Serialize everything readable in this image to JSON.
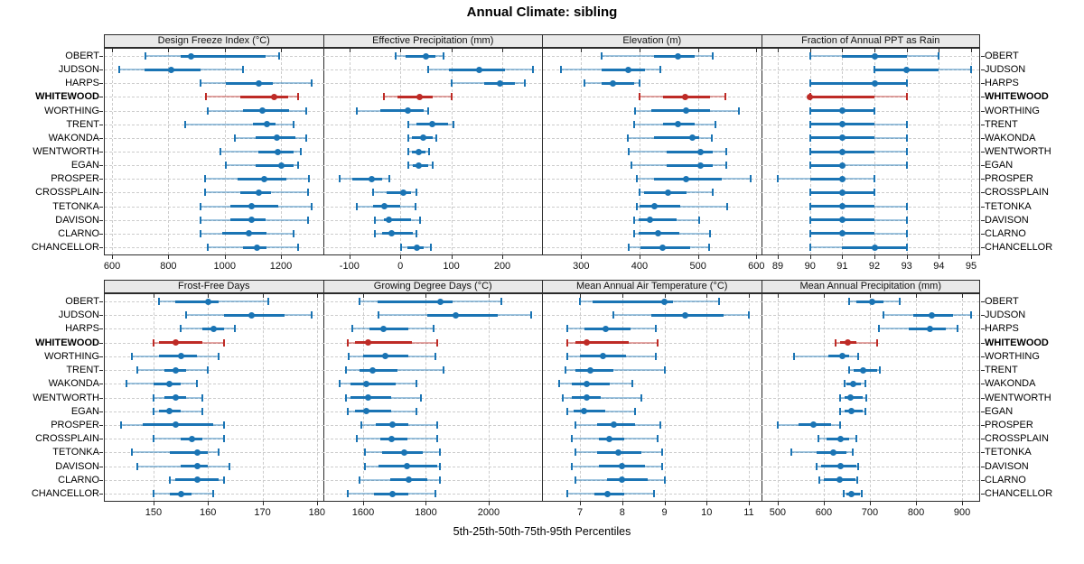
{
  "chart_data": {
    "type": "percentile-dotplot",
    "title": "Annual Climate: sibling",
    "caption": "5th-25th-50th-75th-95th Percentiles",
    "legend_note": "whisker = 5th-95th, thick band = 25th-75th, dot = median",
    "sites": [
      "OBERT",
      "JUDSON",
      "HARPS",
      "WHITEWOOD",
      "WORTHING",
      "TRENT",
      "WAKONDA",
      "WENTWORTH",
      "EGAN",
      "PROSPER",
      "CROSSPLAIN",
      "TETONKA",
      "DAVISON",
      "CLARNO",
      "CHANCELLOR"
    ],
    "highlighted_site": "WHITEWOOD",
    "colors": {
      "normal": "#1a74b4",
      "highlight": "#be2b26"
    },
    "panels": [
      {
        "title": "Design Freeze Index (°C)",
        "band": 0,
        "col": 0,
        "ticks": [
          600,
          800,
          1000,
          1200
        ],
        "domain": [
          571,
          1349
        ],
        "values": [
          [
            720,
            845,
            880,
            1145,
            1195
          ],
          [
            625,
            715,
            810,
            915,
            1065
          ],
          [
            915,
            1005,
            1120,
            1170,
            1310
          ],
          [
            935,
            1055,
            1175,
            1225,
            1260
          ],
          [
            940,
            1065,
            1135,
            1230,
            1290
          ],
          [
            860,
            1100,
            1150,
            1180,
            1245
          ],
          [
            1035,
            1110,
            1185,
            1250,
            1290
          ],
          [
            985,
            1120,
            1190,
            1245,
            1270
          ],
          [
            1005,
            1110,
            1200,
            1245,
            1260
          ],
          [
            930,
            1045,
            1140,
            1220,
            1300
          ],
          [
            930,
            1055,
            1120,
            1165,
            1295
          ],
          [
            915,
            1020,
            1095,
            1190,
            1310
          ],
          [
            915,
            1020,
            1095,
            1145,
            1295
          ],
          [
            915,
            990,
            1085,
            1150,
            1245
          ],
          [
            940,
            1065,
            1115,
            1150,
            1260
          ]
        ]
      },
      {
        "title": "Effective Precipitation (mm)",
        "band": 0,
        "col": 1,
        "ticks": [
          -100,
          0,
          100,
          200
        ],
        "domain": [
          -152,
          278
        ],
        "values": [
          [
            -10,
            10,
            50,
            68,
            85
          ],
          [
            55,
            95,
            155,
            205,
            260
          ],
          [
            100,
            165,
            195,
            225,
            245
          ],
          [
            -32,
            -5,
            38,
            63,
            100
          ],
          [
            -85,
            -40,
            15,
            45,
            55
          ],
          [
            15,
            32,
            63,
            93,
            105
          ],
          [
            16,
            23,
            45,
            63,
            70
          ],
          [
            16,
            23,
            36,
            50,
            57
          ],
          [
            16,
            25,
            36,
            55,
            63
          ],
          [
            -120,
            -95,
            -57,
            -36,
            -21
          ],
          [
            -54,
            -27,
            5,
            21,
            32
          ],
          [
            -86,
            -54,
            -32,
            0,
            29
          ],
          [
            -50,
            -32,
            -23,
            21,
            39
          ],
          [
            -50,
            -36,
            -18,
            25,
            32
          ],
          [
            2,
            13,
            32,
            45,
            60
          ]
        ]
      },
      {
        "title": "Elevation (m)",
        "band": 0,
        "col": 2,
        "ticks": [
          300,
          400,
          500,
          600
        ],
        "domain": [
          233,
          608
        ],
        "values": [
          [
            335,
            425,
            465,
            495,
            525
          ],
          [
            265,
            335,
            380,
            410,
            435
          ],
          [
            305,
            335,
            355,
            390,
            400
          ],
          [
            400,
            440,
            478,
            520,
            547
          ],
          [
            393,
            420,
            479,
            520,
            570
          ],
          [
            390,
            440,
            466,
            495,
            530
          ],
          [
            380,
            425,
            490,
            502,
            524
          ],
          [
            381,
            446,
            505,
            526,
            549
          ],
          [
            386,
            446,
            505,
            525,
            548
          ],
          [
            395,
            425,
            480,
            540,
            590
          ],
          [
            400,
            408,
            448,
            480,
            525
          ],
          [
            396,
            400,
            426,
            470,
            550
          ],
          [
            391,
            398,
            418,
            464,
            502
          ],
          [
            391,
            398,
            431,
            468,
            521
          ],
          [
            381,
            402,
            439,
            487,
            519
          ]
        ]
      },
      {
        "title": "Fraction of Annual PPT as Rain",
        "band": 0,
        "col": 3,
        "ticks": [
          89,
          90,
          91,
          92,
          93,
          94,
          95
        ],
        "domain": [
          88.48,
          95.28
        ],
        "values": [
          [
            90,
            91,
            92,
            93,
            94
          ],
          [
            92,
            92,
            93,
            94,
            95
          ],
          [
            90,
            90,
            92,
            93,
            93
          ],
          [
            90,
            90,
            90,
            92,
            93
          ],
          [
            90,
            90,
            91,
            92,
            92
          ],
          [
            90,
            90,
            91,
            92,
            93
          ],
          [
            90,
            90,
            91,
            92,
            93
          ],
          [
            90,
            90,
            91,
            92,
            93
          ],
          [
            90,
            90,
            91,
            91,
            93
          ],
          [
            89,
            90,
            91,
            91,
            92
          ],
          [
            90,
            90,
            91,
            92,
            92
          ],
          [
            90,
            90,
            91,
            92,
            93
          ],
          [
            90,
            90,
            91,
            92,
            93
          ],
          [
            90,
            90,
            91,
            92,
            93
          ],
          [
            90,
            91,
            92,
            93,
            93
          ]
        ]
      },
      {
        "title": "Frost-Free Days",
        "band": 1,
        "col": 0,
        "ticks": [
          150,
          160,
          170,
          180
        ],
        "domain": [
          140.9,
          181.1
        ],
        "values": [
          [
            151,
            154,
            160,
            162,
            171
          ],
          [
            156,
            163,
            168,
            174,
            179
          ],
          [
            155,
            159,
            161,
            163,
            165
          ],
          [
            150,
            151,
            154,
            159,
            163
          ],
          [
            146,
            151,
            155,
            158,
            162
          ],
          [
            147,
            152,
            154,
            156,
            160
          ],
          [
            145,
            150,
            153,
            155,
            158
          ],
          [
            150,
            152,
            154,
            156,
            159
          ],
          [
            150,
            151,
            153,
            155,
            159
          ],
          [
            144,
            148,
            154,
            161,
            163
          ],
          [
            150,
            155,
            157,
            159,
            163
          ],
          [
            146,
            153,
            158,
            160,
            162
          ],
          [
            147,
            155,
            158,
            160,
            164
          ],
          [
            153,
            154,
            158,
            162,
            163
          ],
          [
            150,
            153,
            155,
            157,
            161
          ]
        ]
      },
      {
        "title": "Growing Degree Days (°C)",
        "band": 1,
        "col": 1,
        "ticks": [
          1600,
          1800,
          2000
        ],
        "domain": [
          1472,
          2170
        ],
        "values": [
          [
            1590,
            1645,
            1845,
            1885,
            2040
          ],
          [
            1650,
            1805,
            1895,
            2030,
            2135
          ],
          [
            1565,
            1620,
            1665,
            1745,
            1825
          ],
          [
            1550,
            1575,
            1615,
            1755,
            1835
          ],
          [
            1555,
            1600,
            1670,
            1745,
            1830
          ],
          [
            1545,
            1590,
            1630,
            1710,
            1855
          ],
          [
            1525,
            1560,
            1610,
            1705,
            1770
          ],
          [
            1545,
            1560,
            1615,
            1690,
            1785
          ],
          [
            1550,
            1575,
            1610,
            1690,
            1770
          ],
          [
            1595,
            1640,
            1695,
            1745,
            1835
          ],
          [
            1580,
            1655,
            1690,
            1740,
            1835
          ],
          [
            1605,
            1660,
            1730,
            1790,
            1845
          ],
          [
            1605,
            1650,
            1740,
            1835,
            1845
          ],
          [
            1590,
            1685,
            1745,
            1805,
            1845
          ],
          [
            1550,
            1635,
            1695,
            1745,
            1830
          ]
        ]
      },
      {
        "title": "Mean Annual Air Temperature (°C)",
        "band": 1,
        "col": 2,
        "ticks": [
          7,
          8,
          9,
          10,
          11
        ],
        "domain": [
          6.1,
          11.29
        ],
        "values": [
          [
            7.0,
            7.3,
            9.0,
            9.2,
            10.3
          ],
          [
            7.8,
            8.7,
            9.5,
            10.4,
            11.0
          ],
          [
            6.7,
            7.1,
            7.6,
            8.2,
            8.8
          ],
          [
            6.7,
            6.9,
            7.15,
            8.15,
            8.85
          ],
          [
            6.7,
            7.0,
            7.55,
            8.1,
            8.8
          ],
          [
            6.65,
            6.9,
            7.25,
            7.8,
            9.0
          ],
          [
            6.5,
            6.8,
            7.15,
            7.7,
            8.25
          ],
          [
            6.6,
            6.8,
            7.15,
            7.5,
            8.45
          ],
          [
            6.7,
            6.85,
            7.1,
            7.6,
            8.3
          ],
          [
            6.9,
            7.4,
            7.8,
            8.3,
            8.9
          ],
          [
            6.8,
            7.45,
            7.7,
            8.05,
            8.85
          ],
          [
            6.9,
            7.4,
            7.9,
            8.45,
            8.95
          ],
          [
            6.8,
            7.45,
            8.0,
            8.55,
            8.95
          ],
          [
            6.9,
            7.65,
            8.0,
            8.6,
            9.0
          ],
          [
            6.7,
            7.35,
            7.65,
            8.05,
            8.75
          ]
        ]
      },
      {
        "title": "Mean Annual Precipitation (mm)",
        "band": 1,
        "col": 3,
        "ticks": [
          500,
          600,
          700,
          800,
          900
        ],
        "domain": [
          464,
          939
        ],
        "values": [
          [
            655,
            670,
            705,
            730,
            765
          ],
          [
            730,
            795,
            835,
            880,
            920
          ],
          [
            720,
            785,
            830,
            865,
            890
          ],
          [
            625,
            635,
            653,
            670,
            715
          ],
          [
            535,
            610,
            640,
            655,
            675
          ],
          [
            655,
            665,
            685,
            715,
            722
          ],
          [
            645,
            650,
            663,
            680,
            690
          ],
          [
            635,
            645,
            657,
            685,
            692
          ],
          [
            635,
            645,
            660,
            685,
            690
          ],
          [
            500,
            545,
            578,
            615,
            635
          ],
          [
            588,
            606,
            637,
            655,
            670
          ],
          [
            530,
            585,
            620,
            650,
            663
          ],
          [
            585,
            595,
            637,
            670,
            675
          ],
          [
            590,
            600,
            635,
            668,
            672
          ],
          [
            643,
            650,
            660,
            678,
            682
          ]
        ]
      }
    ]
  }
}
